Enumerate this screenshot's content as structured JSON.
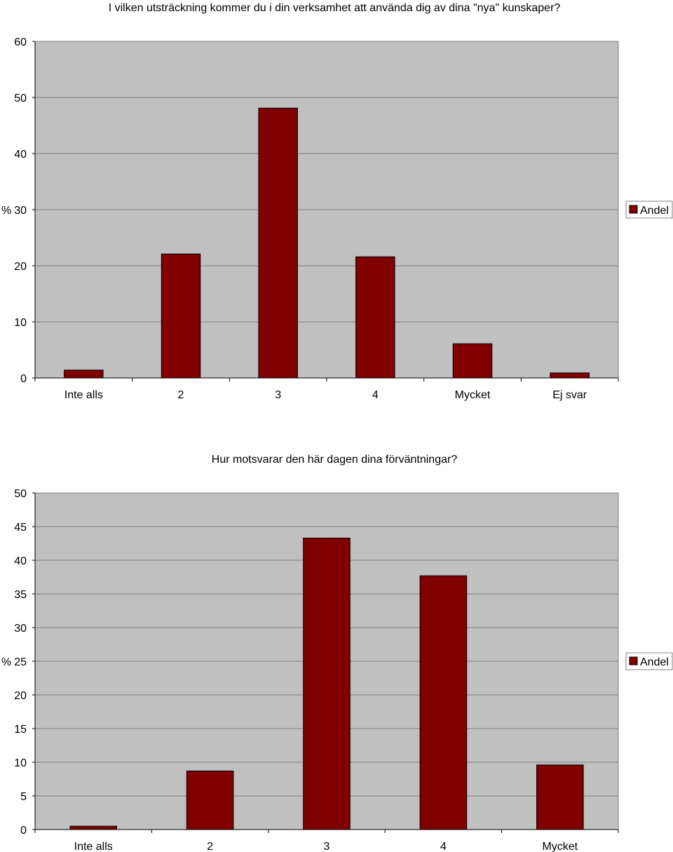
{
  "chart_data": [
    {
      "type": "bar",
      "title": "I vilken utsträckning kommer du i din verksamhet att använda dig av dina \"nya\" kunskaper?",
      "ylabel": "%",
      "ylim": [
        0,
        60
      ],
      "yticks": [
        0,
        10,
        20,
        30,
        40,
        50,
        60
      ],
      "categories": [
        "Inte alls",
        "2",
        "3",
        "4",
        "Mycket",
        "Ej svar"
      ],
      "series": [
        {
          "name": "Andel",
          "values": [
            1.4,
            22.1,
            48.1,
            21.6,
            6.1,
            0.9
          ]
        }
      ],
      "grid": true,
      "legend_position": "right",
      "bar_color": "#800000",
      "plot_background": "#c0c0c0"
    },
    {
      "type": "bar",
      "title": "Hur motsvarar den här dagen dina förväntningar?",
      "ylabel": "%",
      "ylim": [
        0,
        50
      ],
      "yticks": [
        0,
        5,
        10,
        15,
        20,
        25,
        30,
        35,
        40,
        45,
        50
      ],
      "categories": [
        "Inte alls",
        "2",
        "3",
        "4",
        "Mycket"
      ],
      "series": [
        {
          "name": "Andel",
          "values": [
            0.5,
            8.7,
            43.3,
            37.7,
            9.6
          ]
        }
      ],
      "grid": true,
      "legend_position": "right",
      "bar_color": "#800000",
      "plot_background": "#c0c0c0"
    }
  ]
}
